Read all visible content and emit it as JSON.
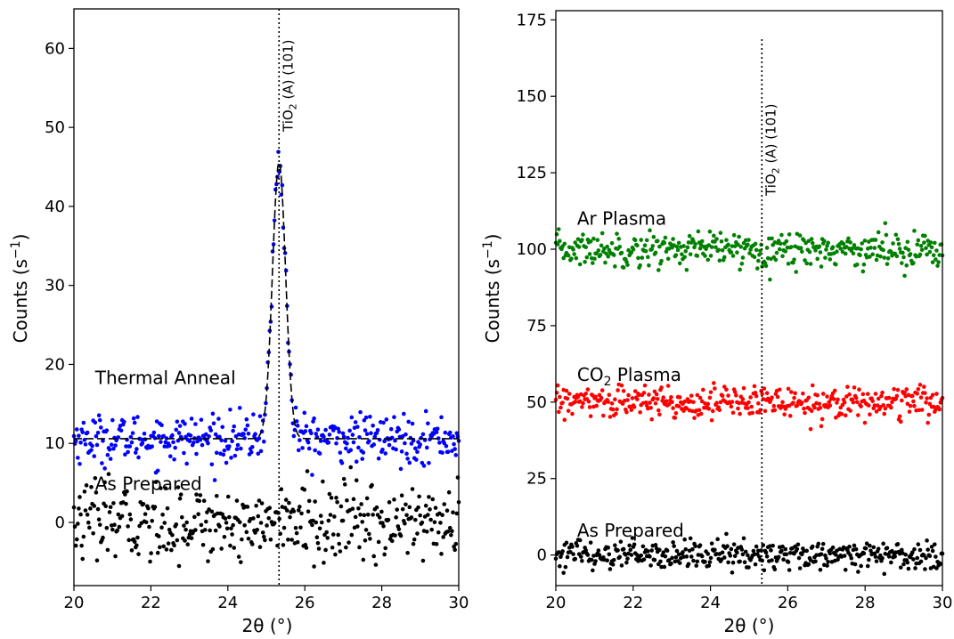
{
  "chart_data": [
    {
      "type": "scatter",
      "xlabel": "2θ (°)",
      "ylabel_main": "Counts (s",
      "ylabel_sup": "−1",
      "ylabel_end": ")",
      "xlim": [
        20,
        30
      ],
      "ylim": [
        -8,
        65
      ],
      "xticks": [
        20,
        22,
        24,
        26,
        28,
        30
      ],
      "yticks": [
        0,
        10,
        20,
        30,
        40,
        50,
        60
      ],
      "reference_line": {
        "x": 25.33,
        "label_main": "TiO",
        "label_sub": "2",
        "label_end": " (A) (101)"
      },
      "series": [
        {
          "name": "Thermal Anneal",
          "color": "#0000ff",
          "baseline": 10.6,
          "noise": 1.5,
          "peak": {
            "center": 25.33,
            "height": 35,
            "sigma": 0.17
          }
        },
        {
          "name": "As Prepared",
          "color": "#000000",
          "baseline": 0,
          "noise": 2.4
        }
      ],
      "fit": {
        "baseline": 10.6,
        "center": 25.33,
        "height": 35,
        "sigma": 0.17,
        "style": "dashed"
      },
      "annotations": [
        {
          "text": "Thermal Anneal",
          "x": 20.55,
          "y": 17.5
        },
        {
          "text": "As Prepared",
          "x": 20.55,
          "y": 4.1
        }
      ]
    },
    {
      "type": "scatter",
      "xlabel": "2θ (°)",
      "ylabel_main": "Counts (s",
      "ylabel_sup": "−1",
      "ylabel_end": ")",
      "xlim": [
        20,
        30
      ],
      "ylim": [
        -10,
        178
      ],
      "xticks": [
        20,
        22,
        24,
        26,
        28,
        30
      ],
      "yticks": [
        0,
        25,
        50,
        75,
        100,
        125,
        150,
        175
      ],
      "reference_line": {
        "x": 25.33,
        "label_main": "TiO",
        "label_sub": "2",
        "label_end": " (A) (101)"
      },
      "series": [
        {
          "name": "Ar Plasma",
          "color": "#008000",
          "baseline": 100,
          "noise": 2.8
        },
        {
          "name": "CO2 Plasma",
          "color": "#ff0000",
          "baseline": 50,
          "noise": 2.6
        },
        {
          "name": "As Prepared",
          "color": "#000000",
          "baseline": 0,
          "noise": 2.4
        }
      ],
      "annotations": [
        {
          "text": "Ar Plasma",
          "x": 20.55,
          "y": 108
        },
        {
          "text_main": "CO",
          "text_sub": "2",
          "text_end": " Plasma",
          "x": 20.55,
          "y": 57
        },
        {
          "text": "As Prepared",
          "x": 20.55,
          "y": 6
        }
      ]
    }
  ]
}
